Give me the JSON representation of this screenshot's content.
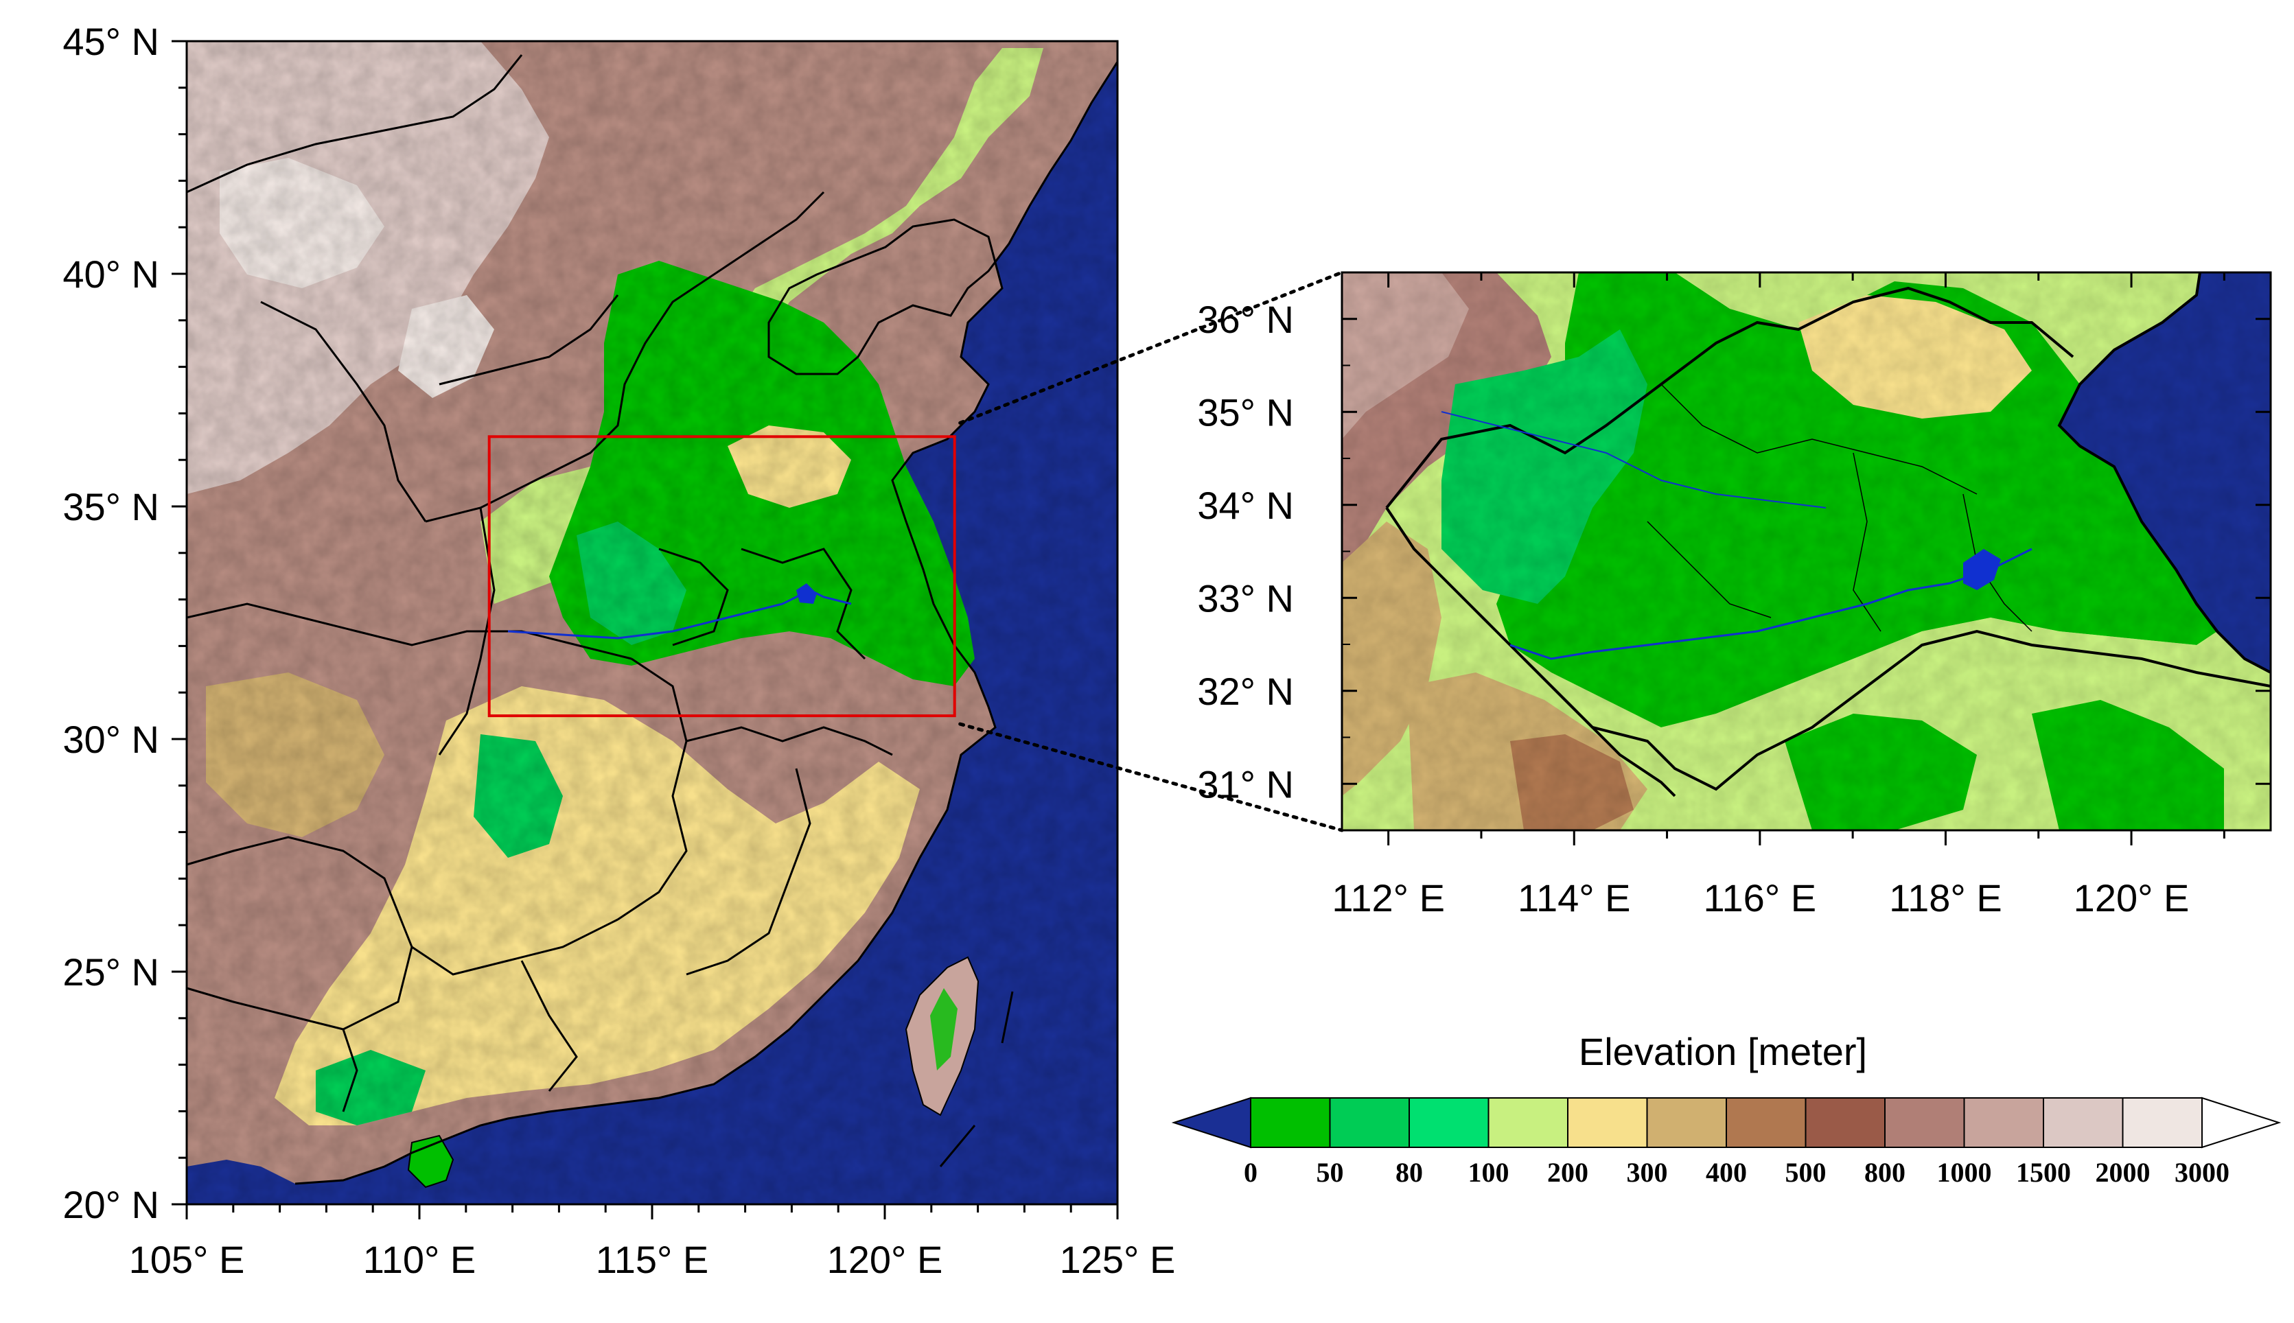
{
  "main_map": {
    "lat_labels": [
      "45° N",
      "40° N",
      "35° N",
      "30° N",
      "25° N",
      "20° N"
    ],
    "lat_values": [
      45,
      40,
      35,
      30,
      25,
      20
    ],
    "lon_labels": [
      "105° E",
      "110° E",
      "115° E",
      "120° E",
      "125° E"
    ],
    "lon_values": [
      105,
      110,
      115,
      120,
      125
    ],
    "lon_range": [
      105,
      125
    ],
    "lat_range": [
      20,
      45
    ],
    "highlight_box": {
      "lon": [
        111.5,
        121.5
      ],
      "lat": [
        30.5,
        36.5
      ],
      "color": "#e00000"
    }
  },
  "inset_map": {
    "lat_labels": [
      "36° N",
      "35° N",
      "34° N",
      "33° N",
      "32° N",
      "31° N"
    ],
    "lat_values": [
      36,
      35,
      34,
      33,
      32,
      31
    ],
    "lon_labels": [
      "112° E",
      "114° E",
      "116° E",
      "118° E",
      "120° E"
    ],
    "lon_values": [
      112,
      114,
      116,
      118,
      120
    ],
    "lon_range": [
      111.5,
      121.5
    ],
    "lat_range": [
      30.5,
      36.5
    ]
  },
  "colorbar": {
    "title": "Elevation [meter]",
    "labels": [
      "0",
      "50",
      "80",
      "100",
      "200",
      "300",
      "400",
      "500",
      "800",
      "1000",
      "1500",
      "2000",
      "3000"
    ],
    "colors": [
      "#1a2f94",
      "#00bf00",
      "#00cc55",
      "#00e070",
      "#c8f080",
      "#f7e08c",
      "#d0b070",
      "#b07850",
      "#9a5a48",
      "#b07f76",
      "#c8a49c",
      "#dcc8c4",
      "#efe6e2",
      "#ffffff"
    ]
  },
  "palette": {
    "ocean": "#1a2f94",
    "border": "#000000",
    "river": "#1030d0"
  }
}
